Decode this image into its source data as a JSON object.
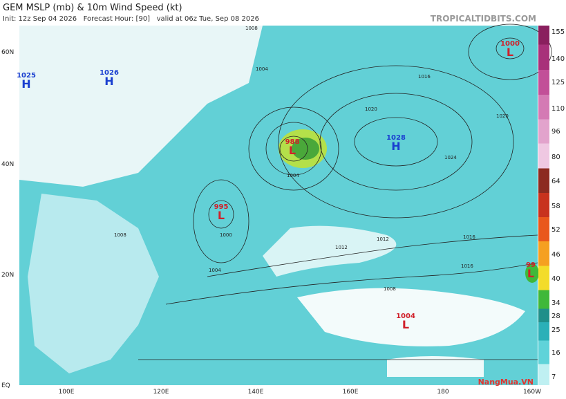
{
  "header": {
    "title": "GEM MSLP (mb) & 10m Wind Speed (kt)",
    "subtitle": "Init: 12z Sep 04 2026   Forecast Hour: [90]   valid at 06z Tue, Sep 08 2026",
    "site": "TROPICALTIDBITS.COM"
  },
  "centers": [
    {
      "pressure": 1025,
      "kind": "H"
    },
    {
      "pressure": 1026,
      "kind": "H"
    },
    {
      "pressure": 1000,
      "kind": "L"
    },
    {
      "pressure": 988,
      "kind": "L"
    },
    {
      "pressure": 995,
      "kind": "L"
    },
    {
      "pressure": 1028,
      "kind": "H"
    },
    {
      "pressure": 1004,
      "kind": "L"
    },
    {
      "pressure": 99,
      "kind": "L"
    }
  ],
  "isobar_labels": [
    1008,
    1004,
    1016,
    1020,
    1024,
    1012,
    1016,
    1008,
    1000,
    1004,
    1020,
    1012,
    1008,
    1004,
    1016
  ],
  "lat_labels": [
    "60N",
    "40N",
    "20N",
    "EQ"
  ],
  "lon_labels": [
    "100E",
    "120E",
    "140E",
    "160E",
    "180",
    "160W"
  ],
  "colorbar": {
    "levels": [
      155,
      140,
      125,
      110,
      96,
      80,
      64,
      58,
      52,
      46,
      40,
      34,
      28,
      25,
      16,
      7
    ],
    "colors": [
      "#8a1f5e",
      "#a8317a",
      "#c24f98",
      "#d47ab4",
      "#e2a3cc",
      "#efc8e2",
      "#8c2a20",
      "#c8321e",
      "#e9581c",
      "#f5a021",
      "#f3dc2a",
      "#3fb83a",
      "#1f8f8a",
      "#2bb0b8",
      "#5fd3d9",
      "#bff0f2"
    ]
  },
  "watermark": "NangMua.VN"
}
